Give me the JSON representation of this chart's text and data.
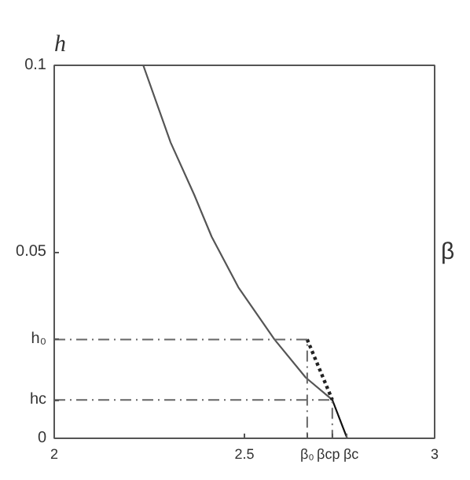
{
  "chart_data": {
    "type": "line",
    "xlabel": "β",
    "ylabel": "h",
    "grid": false,
    "xlim": [
      2,
      3
    ],
    "ylim": [
      0,
      0.1
    ],
    "xticks": [
      2,
      2.5,
      {
        "value": 2.665,
        "label": "β₀"
      },
      {
        "value": 2.731,
        "label": "βcp"
      },
      {
        "value": 2.77,
        "label": "βc"
      },
      3
    ],
    "yticks": [
      0,
      {
        "value": 0.0103,
        "label": "hc"
      },
      {
        "value": 0.0265,
        "label": "h₀"
      },
      0.05,
      0.1
    ],
    "series": [
      {
        "color": "#555555",
        "line_style": "solid",
        "x": [
          2.234,
          2.306,
          2.368,
          2.414,
          2.484,
          2.579,
          2.661,
          2.731
        ],
        "values": [
          0.1,
          0.0793,
          0.0653,
          0.054,
          0.0405,
          0.0265,
          0.0163,
          0.0103
        ]
      },
      {
        "color": "#222222",
        "line_style": "dotted",
        "x": [
          2.665,
          2.731
        ],
        "values": [
          0.0265,
          0.0103
        ]
      },
      {
        "color": "#111111",
        "line_style": "solid",
        "x": [
          2.731,
          2.77
        ],
        "values": [
          0.0103,
          0
        ]
      },
      {
        "color": "#666666",
        "line_style": "dashed",
        "x": [
          2,
          2.665,
          2.665
        ],
        "values": [
          0.0265,
          0.0265,
          0
        ]
      },
      {
        "color": "#666666",
        "line_style": "dashed",
        "x": [
          2,
          2.731,
          2.731
        ],
        "values": [
          0.0103,
          0.0103,
          0
        ]
      }
    ]
  }
}
